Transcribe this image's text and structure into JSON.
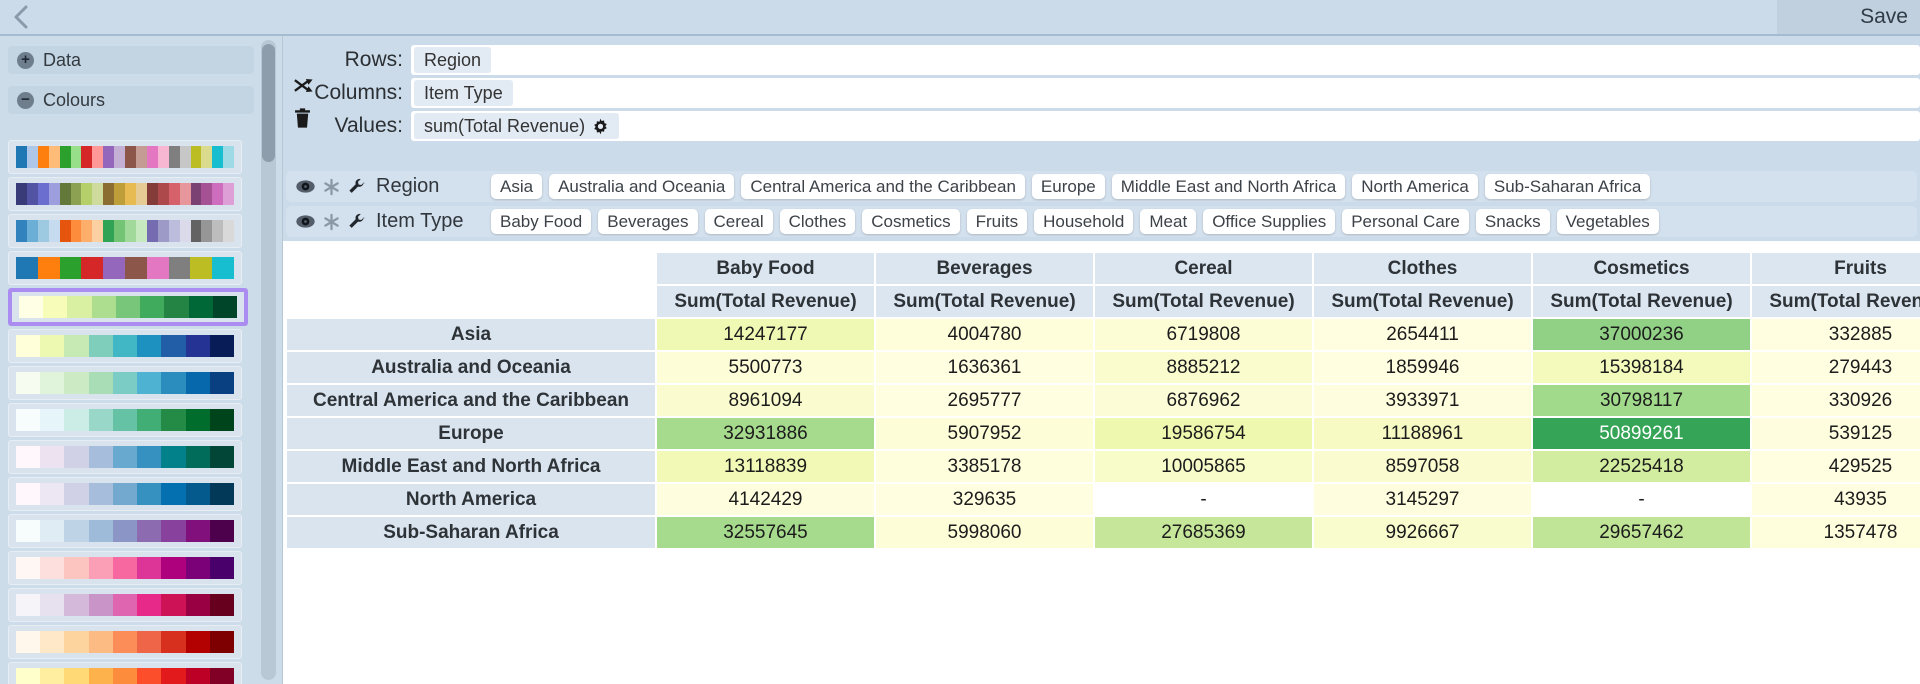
{
  "topbar": {
    "save_label": "Save"
  },
  "sidebar": {
    "sections": [
      {
        "label": "Data",
        "toggle_glyph": "+",
        "state": "collapsed"
      },
      {
        "label": "Colours",
        "toggle_glyph": "−",
        "state": "expanded"
      }
    ],
    "selected_palette_border": "#ab8cf0",
    "palettes": [
      {
        "name": "tab20",
        "selected": false,
        "colors": [
          "#1f77b4",
          "#aec7e8",
          "#ff7f0e",
          "#ffbb78",
          "#2ca02c",
          "#98df8a",
          "#d62728",
          "#ff9896",
          "#9467bd",
          "#c5b0d5",
          "#8c564b",
          "#c49c94",
          "#e377c2",
          "#f7b6d2",
          "#7f7f7f",
          "#c7c7c7",
          "#bcbd22",
          "#dbdb8d",
          "#17becf",
          "#9edae5"
        ]
      },
      {
        "name": "tab20b",
        "selected": false,
        "colors": [
          "#393b79",
          "#5254a3",
          "#6b6ecf",
          "#9c9ede",
          "#637939",
          "#8ca252",
          "#b5cf6b",
          "#cedb9c",
          "#8c6d31",
          "#bd9e39",
          "#e7ba52",
          "#e7cb94",
          "#843c39",
          "#ad494a",
          "#d6616b",
          "#e7969c",
          "#7b4173",
          "#a55194",
          "#ce6dbd",
          "#de9ed6"
        ]
      },
      {
        "name": "tab20c",
        "selected": false,
        "colors": [
          "#3182bd",
          "#6baed6",
          "#9ecae1",
          "#c6dbef",
          "#e6550d",
          "#fd8d3c",
          "#fdae6b",
          "#fdd0a2",
          "#31a354",
          "#74c476",
          "#a1d99b",
          "#c7e9c0",
          "#756bb1",
          "#9e9ac8",
          "#bcbddc",
          "#dadaeb",
          "#636363",
          "#969696",
          "#bdbdbd",
          "#d9d9d9"
        ]
      },
      {
        "name": "tab10",
        "selected": false,
        "colors": [
          "#1f77b4",
          "#ff7f0e",
          "#2ca02c",
          "#d62728",
          "#9467bd",
          "#8c564b",
          "#e377c2",
          "#7f7f7f",
          "#bcbd22",
          "#17becf"
        ]
      },
      {
        "name": "YlGn",
        "selected": true,
        "colors": [
          "#ffffe5",
          "#f7fcb9",
          "#d9f0a3",
          "#addd8e",
          "#78c679",
          "#41ab5d",
          "#238443",
          "#006837",
          "#004529"
        ]
      },
      {
        "name": "YlGnBu",
        "selected": false,
        "colors": [
          "#ffffd9",
          "#edf8b1",
          "#c7e9b4",
          "#7fcdbb",
          "#41b6c4",
          "#1d91c0",
          "#225ea8",
          "#253494",
          "#081d58"
        ]
      },
      {
        "name": "GnBu",
        "selected": false,
        "colors": [
          "#f7fcf0",
          "#e0f3db",
          "#ccebc5",
          "#a8ddb5",
          "#7bccc4",
          "#4eb3d3",
          "#2b8cbe",
          "#0868ac",
          "#084081"
        ]
      },
      {
        "name": "BuGn",
        "selected": false,
        "colors": [
          "#f7fcfd",
          "#e5f5f9",
          "#ccece6",
          "#99d8c9",
          "#66c2a4",
          "#41ae76",
          "#238b45",
          "#006d2c",
          "#00441b"
        ]
      },
      {
        "name": "PuBuGn",
        "selected": false,
        "colors": [
          "#fff7fb",
          "#ece2f0",
          "#d0d1e6",
          "#a6bddb",
          "#67a9cf",
          "#3690c0",
          "#02818a",
          "#016c59",
          "#014636"
        ]
      },
      {
        "name": "PuBu",
        "selected": false,
        "colors": [
          "#fff7fb",
          "#ece7f2",
          "#d0d1e6",
          "#a6bddb",
          "#74a9cf",
          "#3690c0",
          "#0570b0",
          "#045a8d",
          "#023858"
        ]
      },
      {
        "name": "BuPu",
        "selected": false,
        "colors": [
          "#f7fcfd",
          "#e0ecf4",
          "#bfd3e6",
          "#9ebcda",
          "#8c96c6",
          "#8c6bb1",
          "#88419d",
          "#810f7c",
          "#4d004b"
        ]
      },
      {
        "name": "RdPu",
        "selected": false,
        "colors": [
          "#fff7f3",
          "#fde0dd",
          "#fcc5c0",
          "#fa9fb5",
          "#f768a1",
          "#dd3497",
          "#ae017e",
          "#7a0177",
          "#49006a"
        ]
      },
      {
        "name": "PuRd",
        "selected": false,
        "colors": [
          "#f7f4f9",
          "#e7e1ef",
          "#d4b9da",
          "#c994c7",
          "#df65b0",
          "#e7298a",
          "#ce1256",
          "#980043",
          "#67001f"
        ]
      },
      {
        "name": "OrRd",
        "selected": false,
        "colors": [
          "#fff7ec",
          "#fee8c8",
          "#fdd49e",
          "#fdbb84",
          "#fc8d59",
          "#ef6548",
          "#d7301f",
          "#b30000",
          "#7f0000"
        ]
      },
      {
        "name": "YlOrRd",
        "selected": false,
        "colors": [
          "#ffffcc",
          "#ffeda0",
          "#fed976",
          "#feb24c",
          "#fd8d3c",
          "#fc4e2a",
          "#e31a1c",
          "#bd0026",
          "#800026"
        ]
      }
    ]
  },
  "config": {
    "rows": {
      "label": "Rows:",
      "chips": [
        "Region"
      ]
    },
    "columns": {
      "label": "Columns:",
      "chips": [
        "Item Type"
      ]
    },
    "values": {
      "label": "Values:",
      "chips": [
        "sum(Total Revenue)"
      ]
    }
  },
  "filters": [
    {
      "field": "Region",
      "chips": [
        "Asia",
        "Australia and Oceania",
        "Central America and the Caribbean",
        "Europe",
        "Middle East and North Africa",
        "North America",
        "Sub-Saharan Africa"
      ]
    },
    {
      "field": "Item Type",
      "chips": [
        "Baby Food",
        "Beverages",
        "Cereal",
        "Clothes",
        "Cosmetics",
        "Fruits",
        "Household",
        "Meat",
        "Office Supplies",
        "Personal Care",
        "Snacks",
        "Vegetables"
      ]
    }
  ],
  "pivot_table": {
    "columns": [
      "Baby Food",
      "Beverages",
      "Cereal",
      "Clothes",
      "Cosmetics",
      "Fruits"
    ],
    "measure_label": "Sum(Total Revenue)",
    "rows": [
      {
        "label": "Asia",
        "values": [
          "14247177",
          "4004780",
          "6719808",
          "2654411",
          "37000236",
          "332885"
        ]
      },
      {
        "label": "Australia and Oceania",
        "values": [
          "5500773",
          "1636361",
          "8885212",
          "1859946",
          "15398184",
          "279443"
        ]
      },
      {
        "label": "Central America and the Caribbean",
        "values": [
          "8961094",
          "2695777",
          "6876962",
          "3933971",
          "30798117",
          "330926"
        ]
      },
      {
        "label": "Europe",
        "values": [
          "32931886",
          "5907952",
          "19586754",
          "11188961",
          "50899261",
          "539125"
        ]
      },
      {
        "label": "Middle East and North Africa",
        "values": [
          "13118839",
          "3385178",
          "10005865",
          "8597058",
          "22525418",
          "429525"
        ]
      },
      {
        "label": "North America",
        "values": [
          "4142429",
          "329635",
          "-",
          "3145297",
          "-",
          "43935"
        ]
      },
      {
        "label": "Sub-Saharan Africa",
        "values": [
          "32557645",
          "5998060",
          "27685369",
          "9926667",
          "29657462",
          "1357478"
        ]
      }
    ],
    "cell_colors": [
      [
        "#f0f9b4",
        "#fefedb",
        "#fcfdd5",
        "#fffee0",
        "#90d185",
        "#fffee0"
      ],
      [
        "#fdfdd8",
        "#fffee0",
        "#fafcce",
        "#fffee0",
        "#f4fabb",
        "#fffee0"
      ],
      [
        "#fafccf",
        "#fffee0",
        "#fcfdd6",
        "#fefede",
        "#a2da8c",
        "#fffee0"
      ],
      [
        "#a6da8c",
        "#fdfdd8",
        "#eef8ae",
        "#f7fbc3",
        "#35a457",
        "#fefede"
      ],
      [
        "#f2f9b6",
        "#fefedd",
        "#f8fcc9",
        "#fafcd0",
        "#d2ed9f",
        "#fffee0"
      ],
      [
        "#fefede",
        "#fffee0",
        "#ffffff",
        "#fefede",
        "#ffffff",
        "#fffee0"
      ],
      [
        "#a6da8c",
        "#fdfdd8",
        "#c6e79a",
        "#f9fccc",
        "#c0e597",
        "#fefedd"
      ]
    ]
  }
}
